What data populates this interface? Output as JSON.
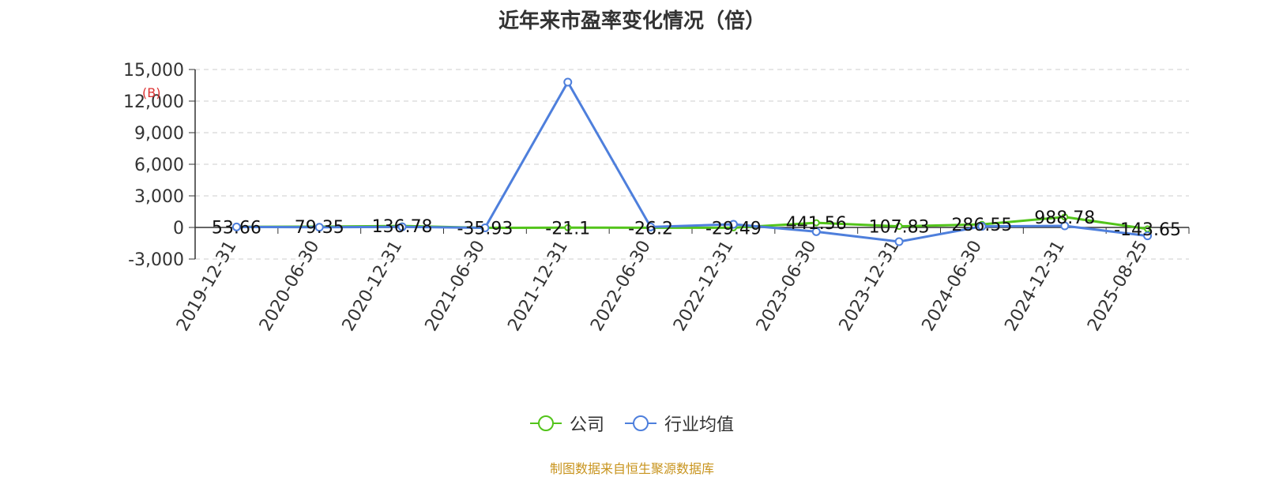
{
  "chart_data": {
    "type": "line",
    "title": "近年来市盈率变化情况（倍）",
    "xlabel": "",
    "ylabel": "",
    "categories": [
      "2019-12-31",
      "2020-06-30",
      "2020-12-31",
      "2021-06-30",
      "2021-12-31",
      "2022-06-30",
      "2022-12-31",
      "2023-06-30",
      "2023-12-31",
      "2024-06-30",
      "2024-12-31",
      "2025-08-25"
    ],
    "series": [
      {
        "name": "公司",
        "color": "#52c41a",
        "values": [
          53.66,
          79.35,
          136.78,
          -35.93,
          -21.1,
          -26.2,
          -29.49,
          441.56,
          107.83,
          286.55,
          988.78,
          -143.65
        ],
        "labels": [
          "53.66",
          "79.35",
          "136.78",
          "-35.93",
          "-21.1",
          "-26.2",
          "-29.49",
          "441.56",
          "107.83",
          "286.55",
          "988.78",
          "-143.65"
        ]
      },
      {
        "name": "行业均值",
        "color": "#4e7fdc",
        "values": [
          50,
          20,
          60,
          -40,
          13800,
          50,
          300,
          -400,
          -1350,
          100,
          150,
          -800
        ]
      }
    ],
    "ylim": [
      -3000,
      15000
    ],
    "yticks": [
      15000,
      12000,
      9000,
      6000,
      3000,
      0,
      -3000
    ],
    "ytick_labels": [
      "15,000",
      "12,000",
      "9,000",
      "6,000",
      "3,000",
      "0",
      "-3,000"
    ],
    "grid": true,
    "legend_position": "bottom-center"
  },
  "source_text": "制图数据来自恒生聚源数据库",
  "source_color": "#c8941e",
  "stamp_text": "(B)"
}
